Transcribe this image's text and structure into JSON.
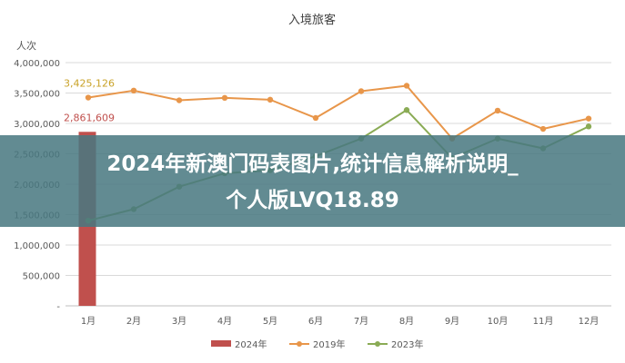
{
  "chart_data": {
    "type": "bar+line",
    "title": "入境旅客",
    "ylabel": "人次",
    "ylim": [
      0,
      4000000
    ],
    "yticks": [
      0,
      500000,
      1000000,
      1500000,
      2000000,
      2500000,
      3000000,
      3500000,
      4000000
    ],
    "ytick_labels": [
      "-",
      "500,000",
      "1,000,000",
      "1,500,000",
      "2,000,000",
      "2,500,000",
      "3,000,000",
      "3,500,000",
      "4,000,000"
    ],
    "categories": [
      "1月",
      "2月",
      "3月",
      "4月",
      "5月",
      "6月",
      "7月",
      "8月",
      "9月",
      "10月",
      "11月",
      "12月"
    ],
    "grid": true,
    "legend_position": "bottom",
    "series": [
      {
        "name": "2024年",
        "kind": "bar",
        "color": "#c0504d",
        "values": [
          2861609,
          null,
          null,
          null,
          null,
          null,
          null,
          null,
          null,
          null,
          null,
          null
        ]
      },
      {
        "name": "2019年",
        "kind": "line",
        "color": "#e8964a",
        "values": [
          3425126,
          3540000,
          3380000,
          3420000,
          3390000,
          3090000,
          3530000,
          3620000,
          2750000,
          3210000,
          2910000,
          3080000
        ]
      },
      {
        "name": "2023年",
        "kind": "line",
        "color": "#8aab55",
        "values": [
          1400000,
          1590000,
          1960000,
          2180000,
          2230000,
          2460000,
          2750000,
          3220000,
          2430000,
          2750000,
          2590000,
          2950000
        ]
      }
    ],
    "annotations": [
      {
        "series": "2019年",
        "index": 0,
        "text": "3,425,126",
        "color": "#c9a227"
      },
      {
        "series": "2024年",
        "index": 0,
        "text": "2,861,609",
        "color": "#c0504d"
      }
    ]
  },
  "banner": {
    "line1": "2024年新澳门码表图片,统计信息解析说明_",
    "line2": "个人版LVQ18.89"
  }
}
